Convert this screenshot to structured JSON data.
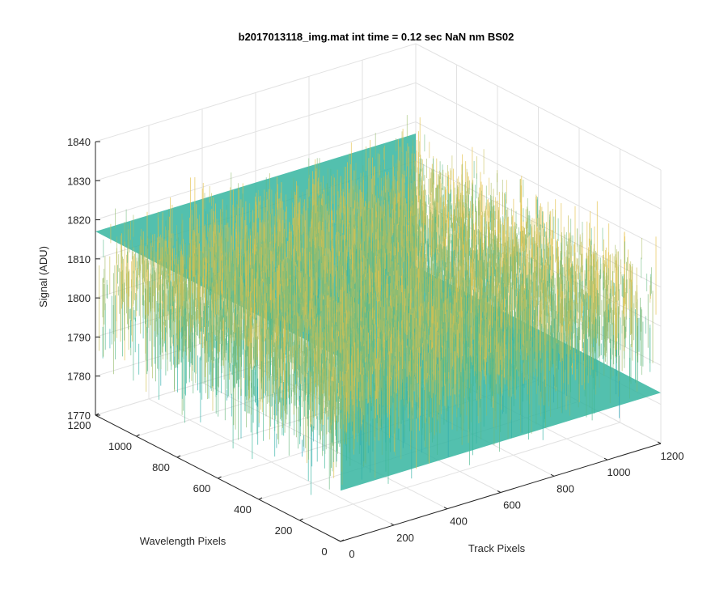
{
  "chart_data": {
    "type": "surface",
    "title": "b2017013118_img.mat int time = 0.12 sec  NaN nm BS02",
    "xlabel": "Track Pixels",
    "ylabel": "Wavelength Pixels",
    "zlabel": "Signal (ADU)",
    "xlim": [
      0,
      1200
    ],
    "ylim": [
      0,
      1200
    ],
    "zlim": [
      1770,
      1840
    ],
    "xticks": [
      "0",
      "200",
      "400",
      "600",
      "800",
      "1000",
      "1200"
    ],
    "yticks": [
      "0",
      "200",
      "400",
      "600",
      "800",
      "1000",
      "1200"
    ],
    "zticks": [
      "1770",
      "1780",
      "1790",
      "1800",
      "1810",
      "1820",
      "1830",
      "1840"
    ],
    "grid": true,
    "colormap": "parula",
    "surface": {
      "x_extent": [
        0,
        1200
      ],
      "y_extent": [
        0,
        1200
      ],
      "mean": 1800,
      "spread": [
        1783,
        1817
      ],
      "spike_range": [
        1774,
        1826
      ]
    },
    "colors": {
      "low": "#1f9ad6",
      "mid": "#37b89a",
      "high": "#e6c24a",
      "axis": "#262626",
      "grid": "#e2e2e2"
    }
  }
}
